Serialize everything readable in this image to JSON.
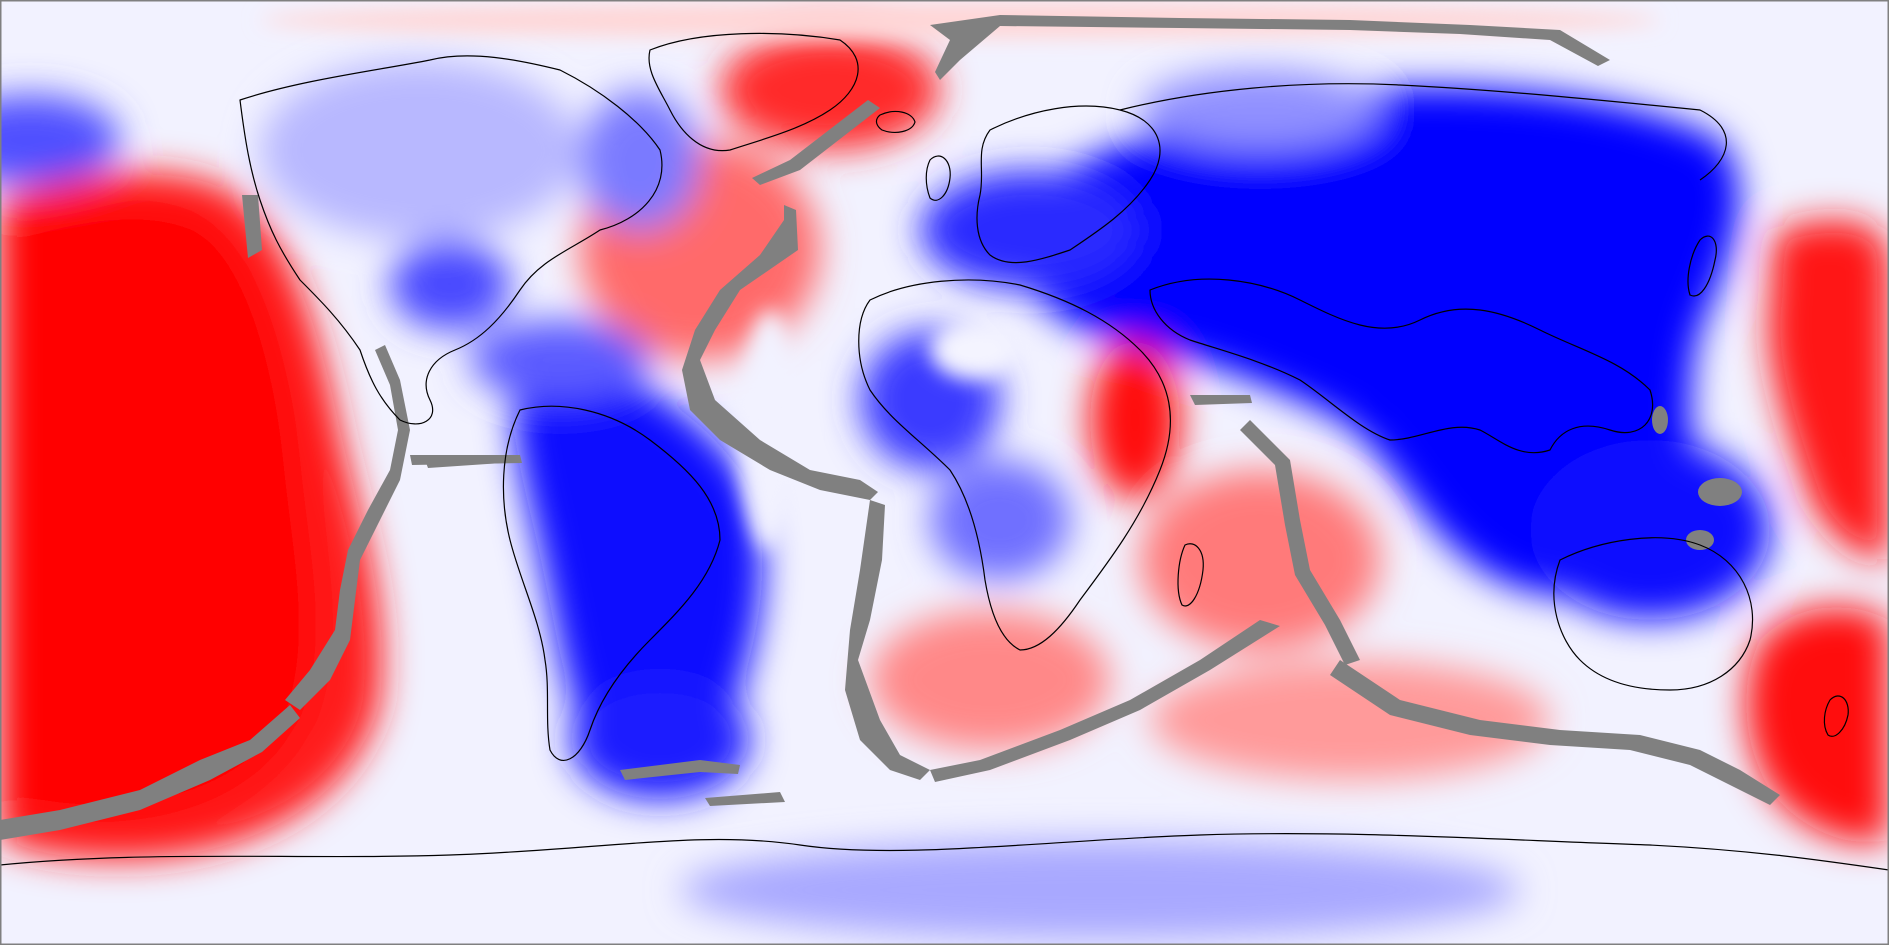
{
  "map": {
    "projection": "equirectangular",
    "colors": {
      "deep_red": "#ff0000",
      "red": "#ff3a3a",
      "mid_red": "#ff7878",
      "light_red": "#ffb4b4",
      "pale_red": "#ffdede",
      "neutral": "#f4f4ff",
      "pale_blue": "#dcdcff",
      "light_blue": "#b4b4ff",
      "mid_blue": "#7878ff",
      "blue": "#3a3aff",
      "deep_blue": "#0000ff",
      "ridge_gray": "#808080",
      "coastline": "#000000",
      "frame": "#808080"
    },
    "layers": [
      "anomaly-field",
      "ridge-mask",
      "coastlines"
    ]
  }
}
